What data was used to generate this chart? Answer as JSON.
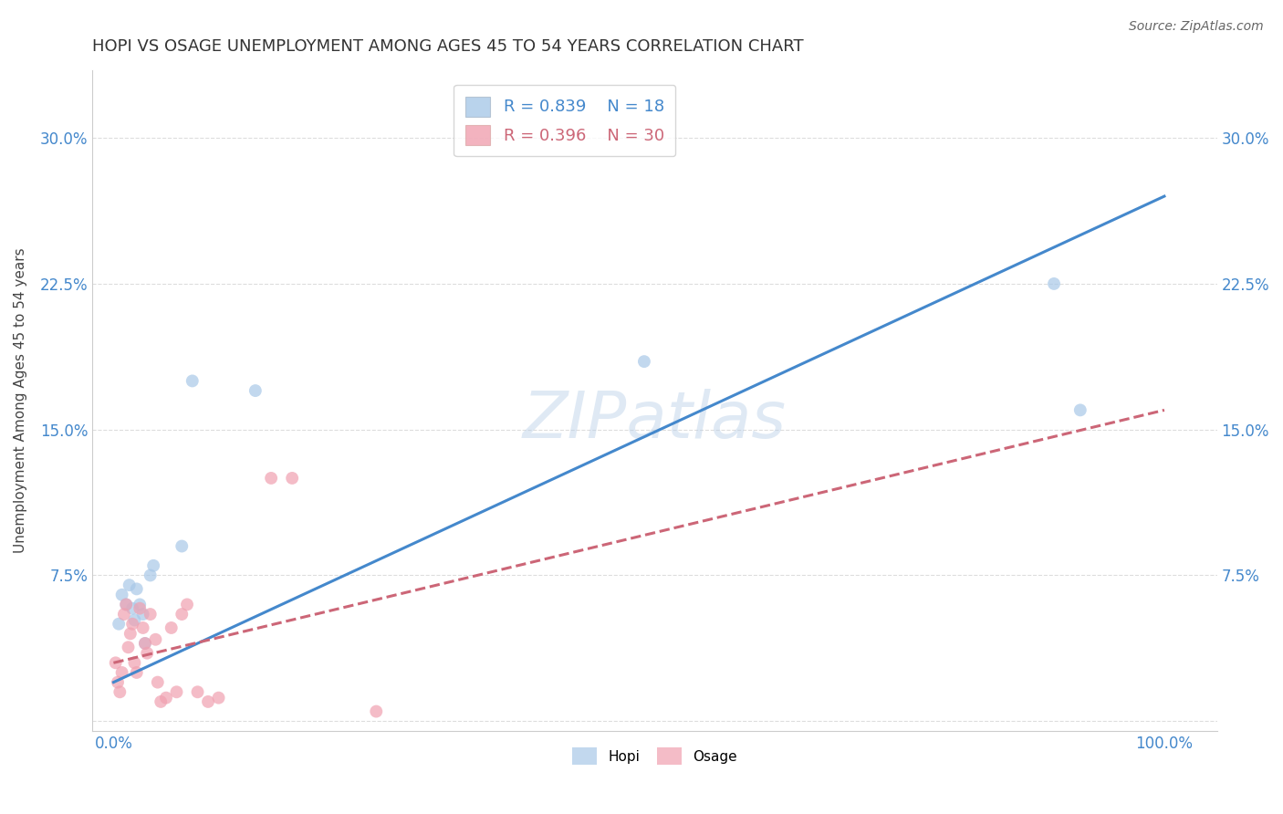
{
  "title": "HOPI VS OSAGE UNEMPLOYMENT AMONG AGES 45 TO 54 YEARS CORRELATION CHART",
  "source": "Source: ZipAtlas.com",
  "ylabel": "Unemployment Among Ages 45 to 54 years",
  "xlim": [
    -0.02,
    1.05
  ],
  "ylim": [
    -0.005,
    0.335
  ],
  "xticks": [
    0.0,
    0.25,
    0.5,
    0.75,
    1.0
  ],
  "xtick_labels": [
    "0.0%",
    "",
    "",
    "",
    "100.0%"
  ],
  "yticks": [
    0.0,
    0.075,
    0.15,
    0.225,
    0.3
  ],
  "ytick_labels": [
    "",
    "7.5%",
    "15.0%",
    "22.5%",
    "30.0%"
  ],
  "hopi_color": "#a8c8e8",
  "osage_color": "#f0a0b0",
  "hopi_line_color": "#4488cc",
  "osage_line_color": "#cc6677",
  "grid_color": "#dddddd",
  "background_color": "#ffffff",
  "legend_r_hopi": "0.839",
  "legend_n_hopi": "18",
  "legend_r_osage": "0.396",
  "legend_n_osage": "30",
  "hopi_x": [
    0.005,
    0.008,
    0.012,
    0.015,
    0.018,
    0.02,
    0.022,
    0.025,
    0.028,
    0.03,
    0.035,
    0.038,
    0.065,
    0.075,
    0.135,
    0.505,
    0.895,
    0.92
  ],
  "hopi_y": [
    0.05,
    0.065,
    0.06,
    0.07,
    0.058,
    0.052,
    0.068,
    0.06,
    0.055,
    0.04,
    0.075,
    0.08,
    0.09,
    0.175,
    0.17,
    0.185,
    0.225,
    0.16
  ],
  "osage_x": [
    0.002,
    0.004,
    0.006,
    0.008,
    0.01,
    0.012,
    0.014,
    0.016,
    0.018,
    0.02,
    0.022,
    0.025,
    0.028,
    0.03,
    0.032,
    0.035,
    0.04,
    0.042,
    0.045,
    0.05,
    0.055,
    0.06,
    0.065,
    0.07,
    0.08,
    0.09,
    0.1,
    0.15,
    0.17,
    0.25
  ],
  "osage_y": [
    0.03,
    0.02,
    0.015,
    0.025,
    0.055,
    0.06,
    0.038,
    0.045,
    0.05,
    0.03,
    0.025,
    0.058,
    0.048,
    0.04,
    0.035,
    0.055,
    0.042,
    0.02,
    0.01,
    0.012,
    0.048,
    0.015,
    0.055,
    0.06,
    0.015,
    0.01,
    0.012,
    0.125,
    0.125,
    0.005
  ],
  "hopi_line_x0": 0.0,
  "hopi_line_x1": 1.0,
  "hopi_line_y0": 0.02,
  "hopi_line_y1": 0.27,
  "osage_line_x0": 0.0,
  "osage_line_x1": 1.0,
  "osage_line_y0": 0.03,
  "osage_line_y1": 0.16,
  "watermark": "ZIPatlas",
  "title_fontsize": 13,
  "label_fontsize": 11,
  "tick_fontsize": 12,
  "source_fontsize": 10,
  "legend_fontsize": 13,
  "marker_size": 100,
  "line_width": 2.2
}
